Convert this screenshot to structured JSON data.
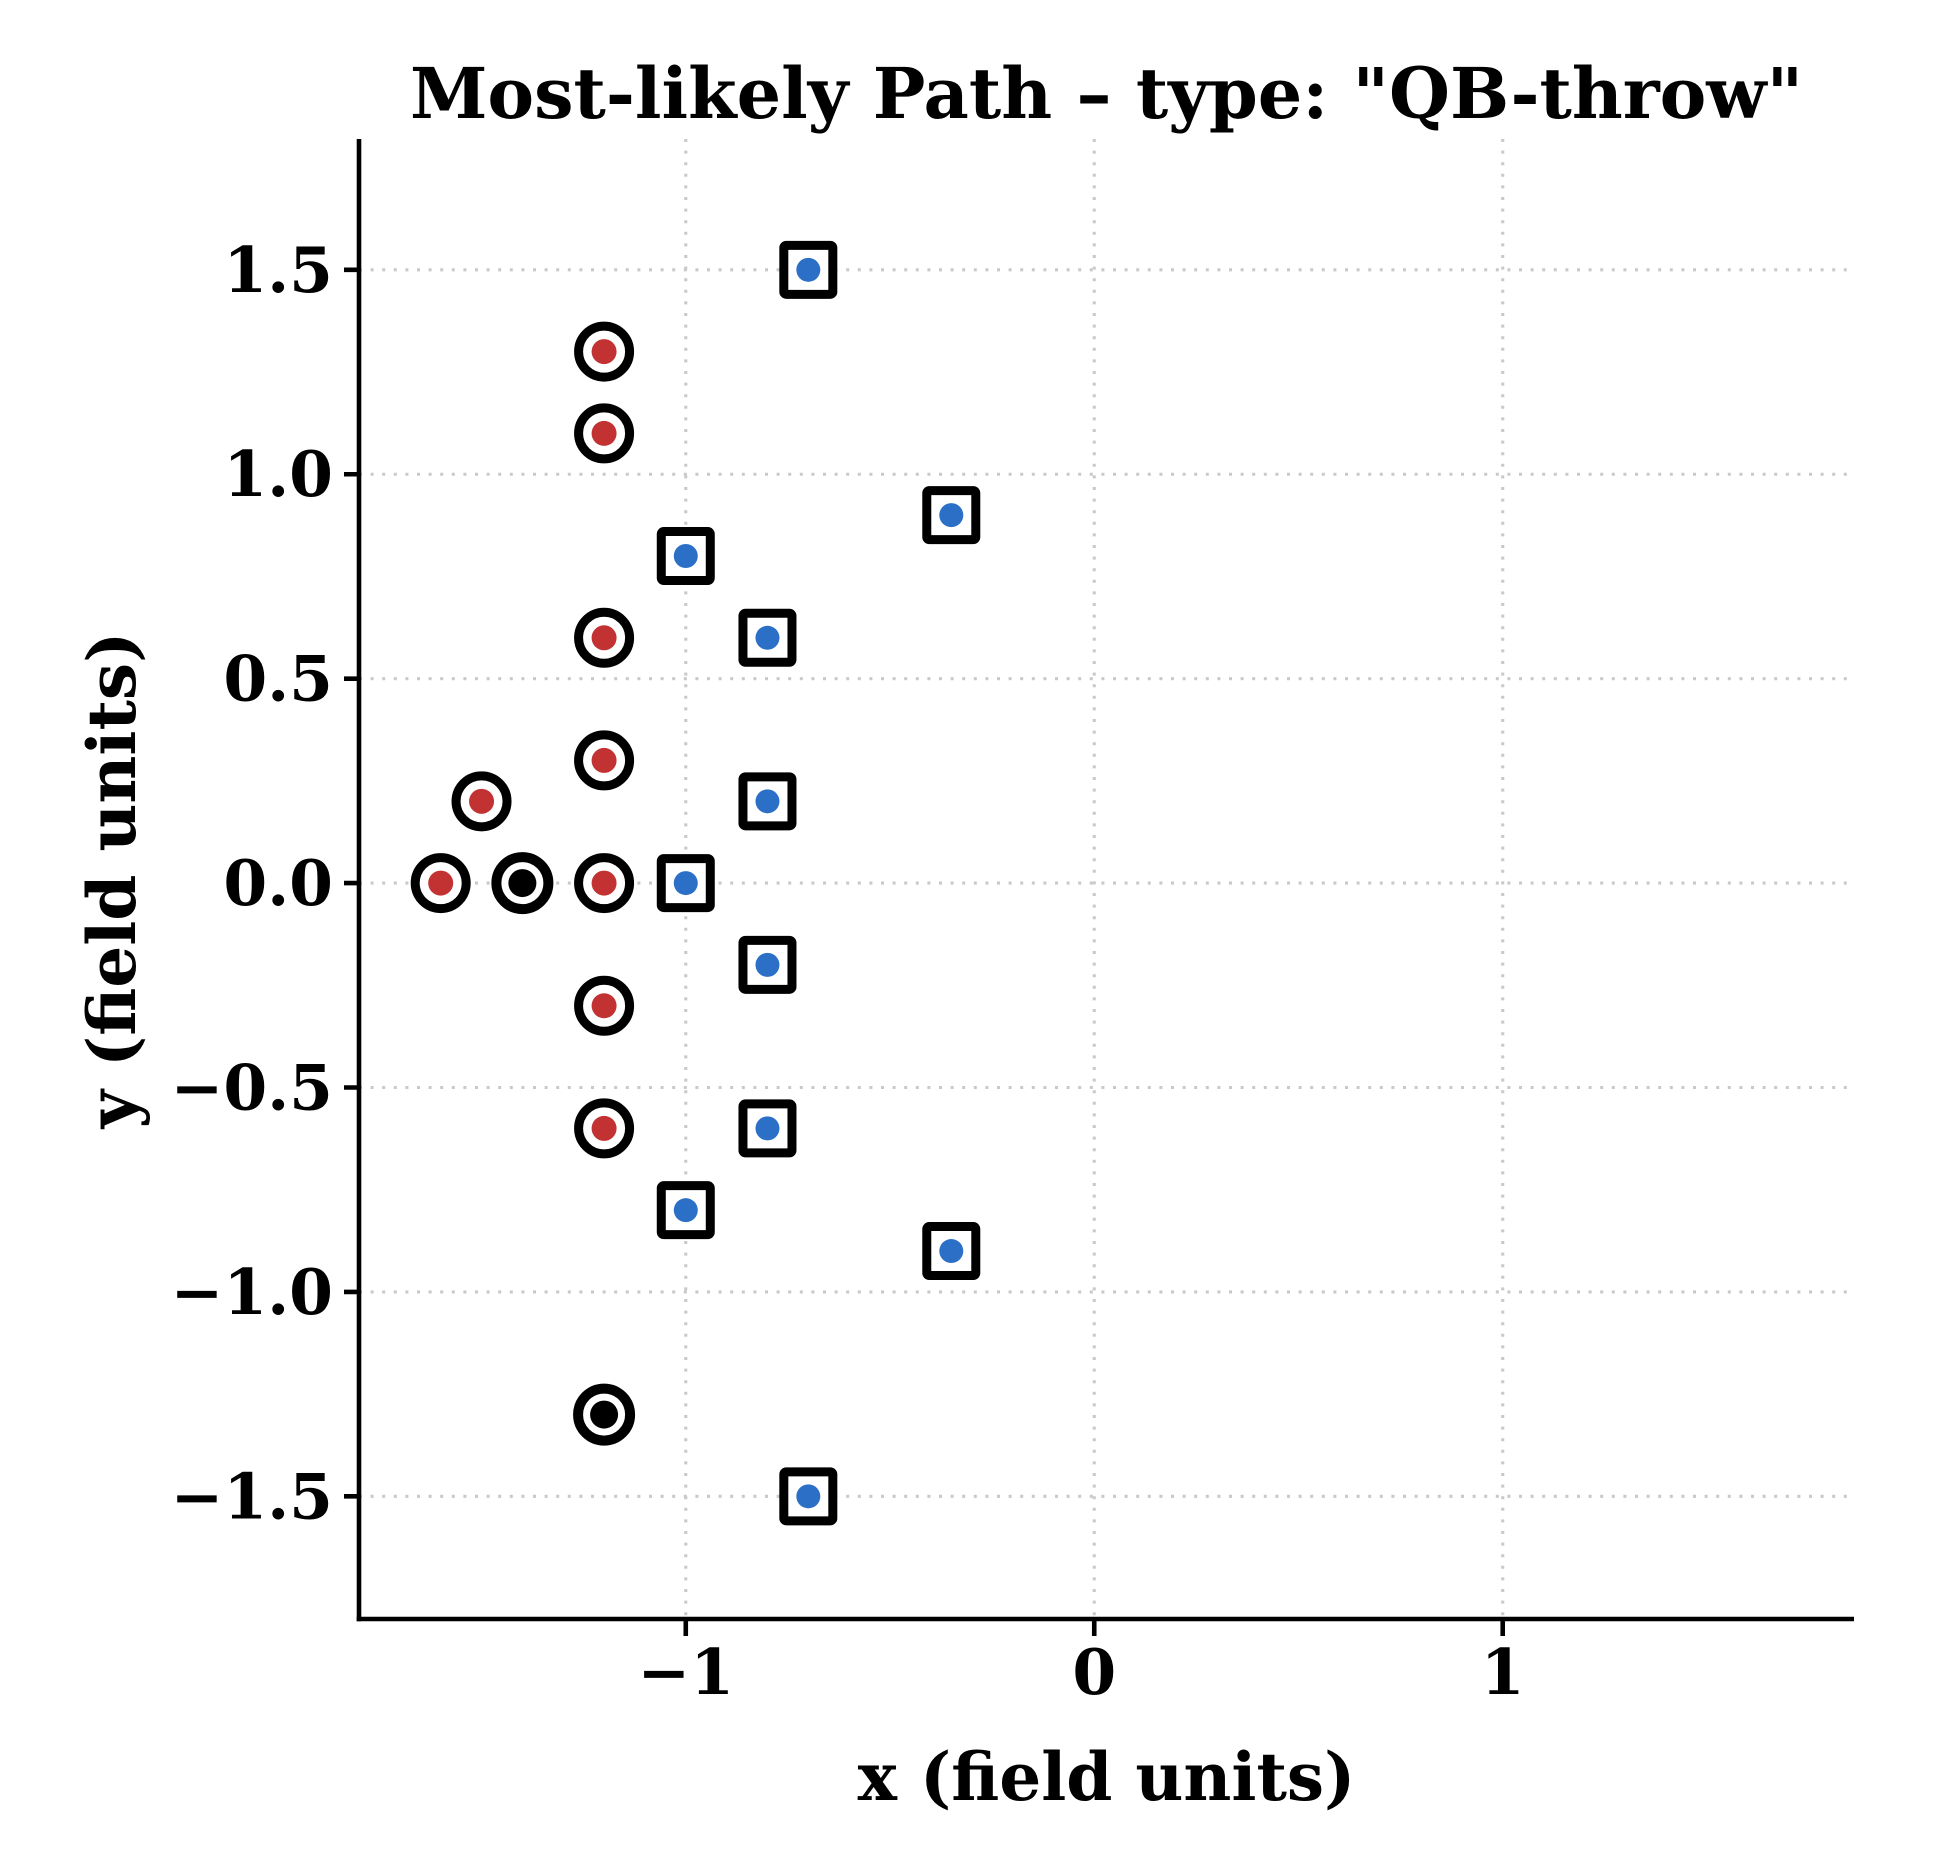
{
  "chart_data": {
    "type": "scatter",
    "title": "Most-likely Path – type: \"QB-throw\"",
    "xlabel": "x (field units)",
    "ylabel": "y (field units)",
    "xlim": [
      -1.8,
      1.86
    ],
    "ylim": [
      -1.8,
      1.82
    ],
    "grid": true,
    "legend": "none",
    "xticks": [
      -1,
      0,
      1
    ],
    "xtick_labels": [
      "−1",
      "0",
      "1"
    ],
    "yticks": [
      -1.5,
      -1.0,
      -0.5,
      0.0,
      0.5,
      1.0,
      1.5
    ],
    "ytick_labels": [
      "−1.5",
      "−1.0",
      "−0.5",
      "0.0",
      "0.5",
      "1.0",
      "1.5"
    ],
    "colors": {
      "red_dot": "#c23232",
      "blue_dot": "#2b70c6",
      "black_dot": "#000000",
      "marker_edge": "#000000",
      "grid_line": "#c9c9c9",
      "text": "#000000",
      "background": "#ffffff"
    },
    "series": [
      {
        "name": "circle-markers-red-dot",
        "marker": "circle",
        "dot_color": "#c23232",
        "ring_radius": 25.5,
        "ring_width": 9,
        "dot_radius": 12.5,
        "points": [
          [
            -1.6,
            0.0
          ],
          [
            -1.5,
            0.2
          ],
          [
            -1.2,
            1.3
          ],
          [
            -1.2,
            1.1
          ],
          [
            -1.2,
            0.6
          ],
          [
            -1.2,
            0.3
          ],
          [
            -1.2,
            0.0
          ],
          [
            -1.2,
            -0.3
          ],
          [
            -1.2,
            -0.6
          ]
        ]
      },
      {
        "name": "circle-markers-black-dot",
        "marker": "circle",
        "dot_color": "#000000",
        "ring_radius": 26,
        "ring_width": 10,
        "dot_radius": 14,
        "points": [
          [
            -1.4,
            0.0
          ],
          [
            -1.2,
            -1.3
          ]
        ]
      },
      {
        "name": "square-markers-blue-dot",
        "marker": "square",
        "dot_color": "#2b70c6",
        "half_size": 24.5,
        "ring_width": 9,
        "dot_radius": 12,
        "points": [
          [
            -0.7,
            1.5
          ],
          [
            -0.35,
            0.9
          ],
          [
            -1.0,
            0.8
          ],
          [
            -0.8,
            0.6
          ],
          [
            -0.8,
            0.2
          ],
          [
            -1.0,
            0.0
          ],
          [
            -0.8,
            -0.2
          ],
          [
            -0.8,
            -0.6
          ],
          [
            -1.0,
            -0.8
          ],
          [
            -0.35,
            -0.9
          ],
          [
            -0.7,
            -1.5
          ]
        ]
      }
    ]
  }
}
